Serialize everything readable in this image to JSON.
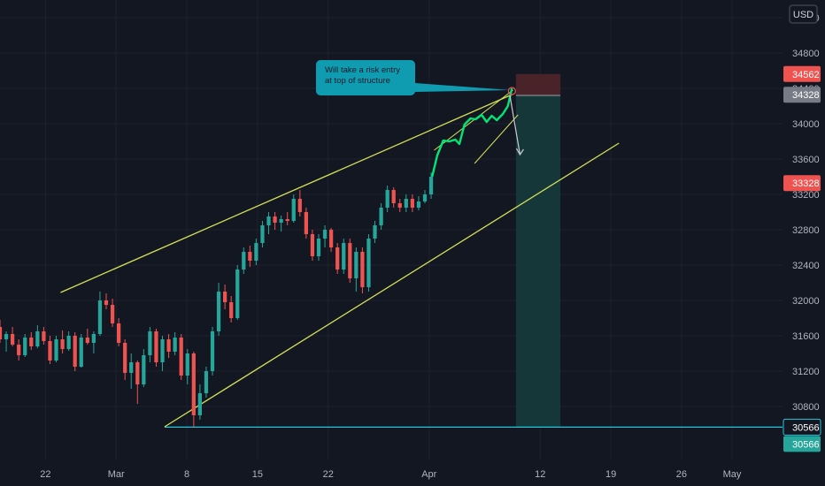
{
  "currency_label": "USD",
  "annotation": {
    "text_line1": "Will take a risk entry",
    "text_line2": "at top of structure"
  },
  "colors": {
    "background": "#131722",
    "up": "#26a69a",
    "down": "#ef5350",
    "wedge": "#d4e157",
    "highlight_path": "#00e676",
    "support": "#26c6da",
    "stop_zone": "#4a2328",
    "target_zone": "#16373a",
    "note_bg": "#0f9cb0"
  },
  "chart_data": {
    "type": "candlestick",
    "y_axis": {
      "ticks": [
        30800,
        31200,
        31600,
        32000,
        32400,
        32800,
        33200,
        33600,
        34000,
        34400,
        34800,
        35200
      ],
      "range": [
        30200,
        35400
      ]
    },
    "x_axis": {
      "ticks": [
        {
          "label": "22",
          "day": -7
        },
        {
          "label": "Mar",
          "day": 0
        },
        {
          "label": "8",
          "day": 7
        },
        {
          "label": "15",
          "day": 14
        },
        {
          "label": "22",
          "day": 21
        },
        {
          "label": "Apr",
          "day": 31
        },
        {
          "label": "12",
          "day": 42
        },
        {
          "label": "19",
          "day": 49
        },
        {
          "label": "26",
          "day": 56
        },
        {
          "label": "May",
          "day": 61
        }
      ],
      "range": [
        -11.5,
        66
      ]
    },
    "price_tags": [
      {
        "value": 34562,
        "label": "34562",
        "color": "#ef5350"
      },
      {
        "value": 34328,
        "label": "34328",
        "color": "#787b86"
      },
      {
        "value": 33328,
        "label": "33328",
        "color": "#ef5350"
      },
      {
        "value": 30566,
        "label": "30566",
        "color": "#26c6da",
        "outlined": true
      },
      {
        "value": 30566,
        "label": "30566",
        "color": "#26a69a",
        "stacked": true
      }
    ],
    "support_level": 30566,
    "wedge_upper": [
      {
        "day": -5.5,
        "price": 32090
      },
      {
        "day": 39.2,
        "price": 34330
      }
    ],
    "wedge_lower": [
      {
        "day": 4.8,
        "price": 30570
      },
      {
        "day": 49.8,
        "price": 33780
      }
    ],
    "rising_channel": {
      "upper": [
        {
          "day": 31.5,
          "price": 33700
        },
        {
          "day": 39.3,
          "price": 34380
        }
      ],
      "lower": [
        {
          "day": 35.5,
          "price": 33550
        },
        {
          "day": 39.8,
          "price": 34100
        }
      ]
    },
    "projection_arrow": [
      {
        "day": 39.0,
        "price": 34320
      },
      {
        "day": 40.0,
        "price": 33650
      }
    ],
    "position": {
      "start_day": 39.6,
      "end_day": 44.0,
      "entry": 34320,
      "stop": 34562,
      "target": 30566
    },
    "highlight_path": [
      {
        "day": 31.3,
        "price": 33400
      },
      {
        "day": 31.8,
        "price": 33640
      },
      {
        "day": 32.4,
        "price": 33810
      },
      {
        "day": 33.0,
        "price": 33800
      },
      {
        "day": 33.6,
        "price": 33820
      },
      {
        "day": 34.0,
        "price": 33770
      },
      {
        "day": 34.5,
        "price": 33990
      },
      {
        "day": 35.1,
        "price": 34060
      },
      {
        "day": 35.6,
        "price": 34050
      },
      {
        "day": 36.2,
        "price": 34100
      },
      {
        "day": 36.7,
        "price": 34020
      },
      {
        "day": 37.2,
        "price": 34090
      },
      {
        "day": 37.7,
        "price": 34040
      },
      {
        "day": 38.3,
        "price": 34110
      },
      {
        "day": 38.8,
        "price": 34200
      },
      {
        "day": 39.2,
        "price": 34400
      }
    ],
    "candles": [
      {
        "o": 31700,
        "h": 31780,
        "l": 31520,
        "c": 31560
      },
      {
        "o": 31560,
        "h": 31650,
        "l": 31420,
        "c": 31620
      },
      {
        "o": 31620,
        "h": 31700,
        "l": 31480,
        "c": 31500
      },
      {
        "o": 31500,
        "h": 31560,
        "l": 31320,
        "c": 31380
      },
      {
        "o": 31380,
        "h": 31620,
        "l": 31360,
        "c": 31580
      },
      {
        "o": 31580,
        "h": 31640,
        "l": 31440,
        "c": 31480
      },
      {
        "o": 31480,
        "h": 31720,
        "l": 31460,
        "c": 31650
      },
      {
        "o": 31650,
        "h": 31700,
        "l": 31500,
        "c": 31540
      },
      {
        "o": 31540,
        "h": 31600,
        "l": 31280,
        "c": 31320
      },
      {
        "o": 31320,
        "h": 31600,
        "l": 31300,
        "c": 31560
      },
      {
        "o": 31560,
        "h": 31660,
        "l": 31400,
        "c": 31450
      },
      {
        "o": 31450,
        "h": 31650,
        "l": 31430,
        "c": 31600
      },
      {
        "o": 31600,
        "h": 31640,
        "l": 31200,
        "c": 31250
      },
      {
        "o": 31250,
        "h": 31620,
        "l": 31240,
        "c": 31580
      },
      {
        "o": 31580,
        "h": 31680,
        "l": 31500,
        "c": 31520
      },
      {
        "o": 31520,
        "h": 31650,
        "l": 31400,
        "c": 31620
      },
      {
        "o": 31620,
        "h": 32100,
        "l": 31600,
        "c": 32000
      },
      {
        "o": 32000,
        "h": 32080,
        "l": 31900,
        "c": 31950
      },
      {
        "o": 31950,
        "h": 32020,
        "l": 31700,
        "c": 31740
      },
      {
        "o": 31740,
        "h": 31800,
        "l": 31480,
        "c": 31520
      },
      {
        "o": 31520,
        "h": 31560,
        "l": 31100,
        "c": 31180
      },
      {
        "o": 31180,
        "h": 31400,
        "l": 31000,
        "c": 31300
      },
      {
        "o": 31300,
        "h": 31320,
        "l": 30830,
        "c": 31050
      },
      {
        "o": 31050,
        "h": 31450,
        "l": 31020,
        "c": 31380
      },
      {
        "o": 31380,
        "h": 31700,
        "l": 31300,
        "c": 31650
      },
      {
        "o": 31650,
        "h": 31680,
        "l": 31250,
        "c": 31300
      },
      {
        "o": 31300,
        "h": 31600,
        "l": 31200,
        "c": 31560
      },
      {
        "o": 31560,
        "h": 31620,
        "l": 31350,
        "c": 31420
      },
      {
        "o": 31420,
        "h": 31640,
        "l": 31380,
        "c": 31580
      },
      {
        "o": 31580,
        "h": 31620,
        "l": 31100,
        "c": 31150
      },
      {
        "o": 31150,
        "h": 31450,
        "l": 31050,
        "c": 31400
      },
      {
        "o": 31400,
        "h": 31420,
        "l": 30570,
        "c": 30700
      },
      {
        "o": 30700,
        "h": 31050,
        "l": 30650,
        "c": 30950
      },
      {
        "o": 30950,
        "h": 31250,
        "l": 30900,
        "c": 31200
      },
      {
        "o": 31200,
        "h": 31700,
        "l": 31150,
        "c": 31650
      },
      {
        "o": 31650,
        "h": 32200,
        "l": 31600,
        "c": 32100
      },
      {
        "o": 32100,
        "h": 32180,
        "l": 31900,
        "c": 31980
      },
      {
        "o": 31980,
        "h": 32050,
        "l": 31750,
        "c": 31800
      },
      {
        "o": 31800,
        "h": 32400,
        "l": 31780,
        "c": 32350
      },
      {
        "o": 32350,
        "h": 32600,
        "l": 32300,
        "c": 32550
      },
      {
        "o": 32550,
        "h": 32620,
        "l": 32380,
        "c": 32450
      },
      {
        "o": 32450,
        "h": 32700,
        "l": 32400,
        "c": 32650
      },
      {
        "o": 32650,
        "h": 32900,
        "l": 32600,
        "c": 32850
      },
      {
        "o": 32850,
        "h": 33000,
        "l": 32750,
        "c": 32950
      },
      {
        "o": 32950,
        "h": 33000,
        "l": 32800,
        "c": 32880
      },
      {
        "o": 32880,
        "h": 32960,
        "l": 32780,
        "c": 32920
      },
      {
        "o": 32920,
        "h": 33000,
        "l": 32850,
        "c": 32900
      },
      {
        "o": 32900,
        "h": 33200,
        "l": 32880,
        "c": 33150
      },
      {
        "o": 33150,
        "h": 33250,
        "l": 32950,
        "c": 33000
      },
      {
        "o": 33000,
        "h": 33050,
        "l": 32700,
        "c": 32750
      },
      {
        "o": 32750,
        "h": 32800,
        "l": 32450,
        "c": 32500
      },
      {
        "o": 32500,
        "h": 32750,
        "l": 32450,
        "c": 32700
      },
      {
        "o": 32700,
        "h": 32850,
        "l": 32600,
        "c": 32800
      },
      {
        "o": 32800,
        "h": 32820,
        "l": 32550,
        "c": 32600
      },
      {
        "o": 32600,
        "h": 32650,
        "l": 32300,
        "c": 32350
      },
      {
        "o": 32350,
        "h": 32700,
        "l": 32300,
        "c": 32650
      },
      {
        "o": 32650,
        "h": 32700,
        "l": 32200,
        "c": 32250
      },
      {
        "o": 32250,
        "h": 32600,
        "l": 32100,
        "c": 32550
      },
      {
        "o": 32550,
        "h": 32600,
        "l": 32080,
        "c": 32150
      },
      {
        "o": 32150,
        "h": 32750,
        "l": 32100,
        "c": 32700
      },
      {
        "o": 32700,
        "h": 32900,
        "l": 32650,
        "c": 32850
      },
      {
        "o": 32850,
        "h": 33100,
        "l": 32800,
        "c": 33050
      },
      {
        "o": 33050,
        "h": 33300,
        "l": 33000,
        "c": 33250
      },
      {
        "o": 33250,
        "h": 33280,
        "l": 33050,
        "c": 33100
      },
      {
        "o": 33100,
        "h": 33150,
        "l": 33000,
        "c": 33050
      },
      {
        "o": 33050,
        "h": 33200,
        "l": 33000,
        "c": 33150
      },
      {
        "o": 33150,
        "h": 33200,
        "l": 33000,
        "c": 33050
      },
      {
        "o": 33050,
        "h": 33180,
        "l": 33020,
        "c": 33120
      },
      {
        "o": 33120,
        "h": 33250,
        "l": 33100,
        "c": 33200
      },
      {
        "o": 33200,
        "h": 33450,
        "l": 33150,
        "c": 33400
      }
    ]
  }
}
